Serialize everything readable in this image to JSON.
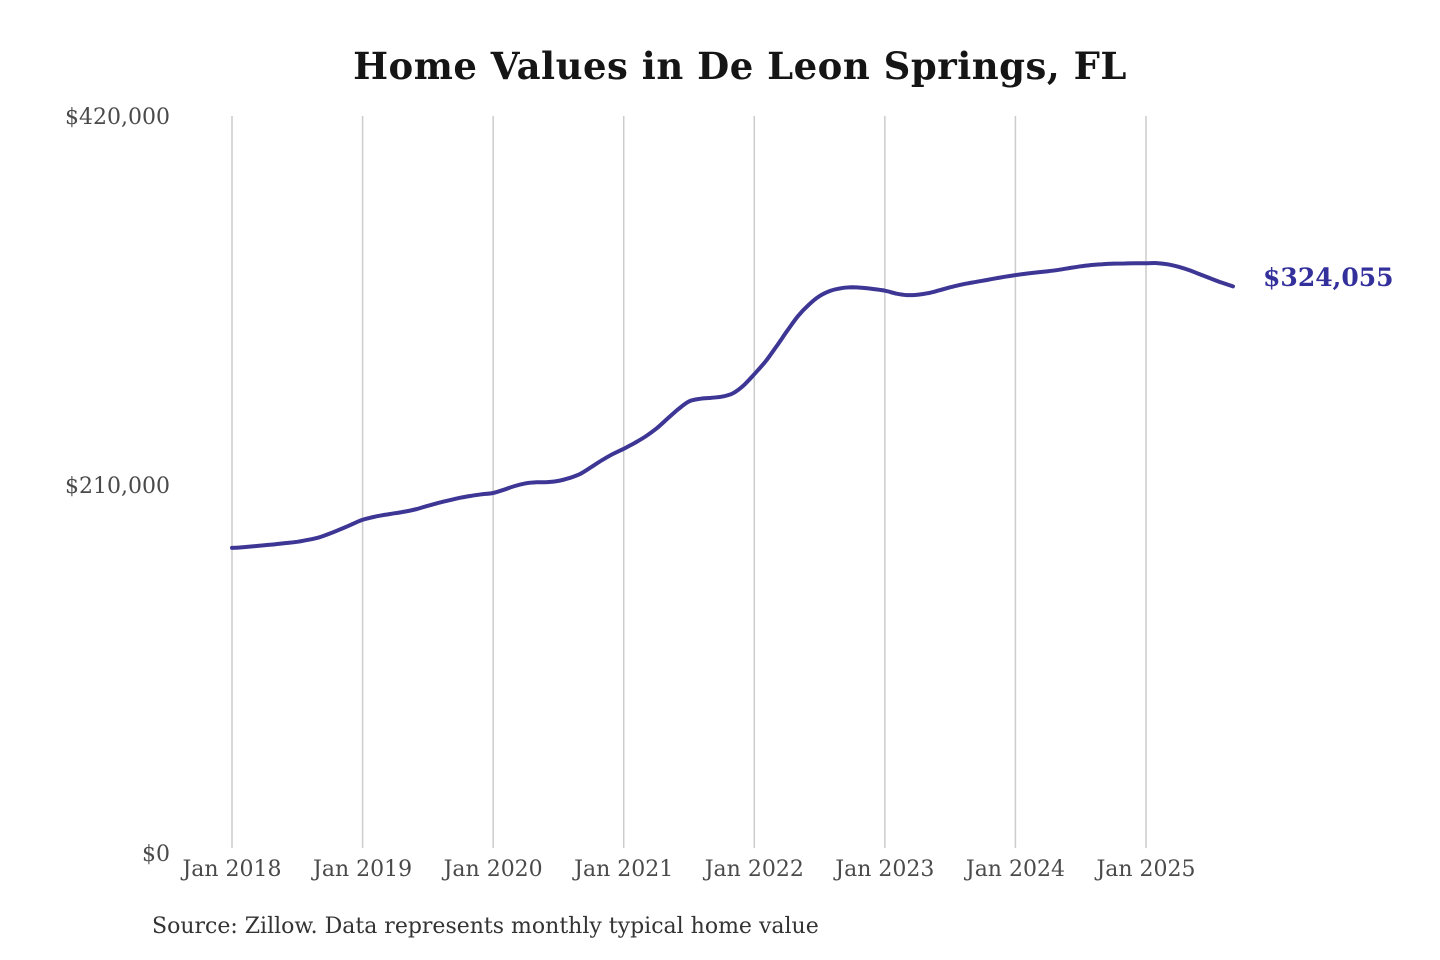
{
  "chart": {
    "title": "Home Values in De Leon Springs, FL",
    "end_label": "$324,055",
    "source_note": "Source: Zillow. Data represents monthly typical home value",
    "colors": {
      "line": "#3d3695",
      "end_label": "#33309c",
      "gridline": "#cccccc",
      "title": "#151515",
      "axis_label": "#4a4a4a",
      "source": "#333333"
    },
    "y_axis": {
      "ticks": [
        {
          "label": "$420,000",
          "value": 420000
        },
        {
          "label": "$210,000",
          "value": 210000
        },
        {
          "label": "$0",
          "value": 0
        }
      ]
    },
    "x_axis": {
      "ticks": [
        {
          "label": "Jan 2018",
          "month_index": 0
        },
        {
          "label": "Jan 2019",
          "month_index": 12
        },
        {
          "label": "Jan 2020",
          "month_index": 24
        },
        {
          "label": "Jan 2021",
          "month_index": 36
        },
        {
          "label": "Jan 2022",
          "month_index": 48
        },
        {
          "label": "Jan 2023",
          "month_index": 60
        },
        {
          "label": "Jan 2024",
          "month_index": 72
        },
        {
          "label": "Jan 2025",
          "month_index": 84
        }
      ]
    }
  },
  "chart_data": {
    "type": "line",
    "title": "Home Values in De Leon Springs, FL",
    "series_name": "Monthly typical home value",
    "x_frequency": "monthly",
    "x_start": "2018-01",
    "x_end": "2025-09",
    "ylim": [
      0,
      420000
    ],
    "y_tick_values": [
      0,
      210000,
      420000
    ],
    "y_tick_labels": [
      "$0",
      "$210,000",
      "$420,000"
    ],
    "x_tick_labels": [
      "Jan 2018",
      "Jan 2019",
      "Jan 2020",
      "Jan 2021",
      "Jan 2022",
      "Jan 2023",
      "Jan 2024",
      "Jan 2025"
    ],
    "grid": "vertical-only",
    "legend": "none",
    "last_value": 324055,
    "last_value_label": "$324,055",
    "x": [
      "2018-01",
      "2018-02",
      "2018-03",
      "2018-04",
      "2018-05",
      "2018-06",
      "2018-07",
      "2018-08",
      "2018-09",
      "2018-10",
      "2018-11",
      "2018-12",
      "2019-01",
      "2019-02",
      "2019-03",
      "2019-04",
      "2019-05",
      "2019-06",
      "2019-07",
      "2019-08",
      "2019-09",
      "2019-10",
      "2019-11",
      "2019-12",
      "2020-01",
      "2020-02",
      "2020-03",
      "2020-04",
      "2020-05",
      "2020-06",
      "2020-07",
      "2020-08",
      "2020-09",
      "2020-10",
      "2020-11",
      "2020-12",
      "2021-01",
      "2021-02",
      "2021-03",
      "2021-04",
      "2021-05",
      "2021-06",
      "2021-07",
      "2021-08",
      "2021-09",
      "2021-10",
      "2021-11",
      "2021-12",
      "2022-01",
      "2022-02",
      "2022-03",
      "2022-04",
      "2022-05",
      "2022-06",
      "2022-07",
      "2022-08",
      "2022-09",
      "2022-10",
      "2022-11",
      "2022-12",
      "2023-01",
      "2023-02",
      "2023-03",
      "2023-04",
      "2023-05",
      "2023-06",
      "2023-07",
      "2023-08",
      "2023-09",
      "2023-10",
      "2023-11",
      "2023-12",
      "2024-01",
      "2024-02",
      "2024-03",
      "2024-04",
      "2024-05",
      "2024-06",
      "2024-07",
      "2024-08",
      "2024-09",
      "2024-10",
      "2024-11",
      "2024-12",
      "2025-01",
      "2025-02",
      "2025-03",
      "2025-04",
      "2025-05",
      "2025-06",
      "2025-07",
      "2025-08",
      "2025-09"
    ],
    "values": [
      175000,
      175400,
      175900,
      176500,
      177100,
      177800,
      178500,
      179600,
      181000,
      183200,
      185700,
      188400,
      191000,
      192600,
      193800,
      194800,
      195800,
      197200,
      199000,
      200700,
      202200,
      203600,
      204700,
      205600,
      206300,
      208200,
      210300,
      211800,
      212400,
      212500,
      213200,
      214800,
      217200,
      221000,
      225000,
      228500,
      231500,
      234800,
      238500,
      243000,
      248500,
      254000,
      258500,
      260000,
      260500,
      261200,
      263000,
      267500,
      274000,
      281000,
      289500,
      298500,
      307000,
      313500,
      318500,
      321500,
      323000,
      323500,
      323200,
      322500,
      321600,
      320000,
      319100,
      319300,
      320200,
      321800,
      323500,
      325000,
      326200,
      327300,
      328400,
      329500,
      330500,
      331300,
      332000,
      332700,
      333500,
      334500,
      335500,
      336200,
      336700,
      337000,
      337100,
      337200,
      337200,
      337300,
      336600,
      335200,
      333200,
      330800,
      328400,
      326100,
      324055
    ]
  }
}
